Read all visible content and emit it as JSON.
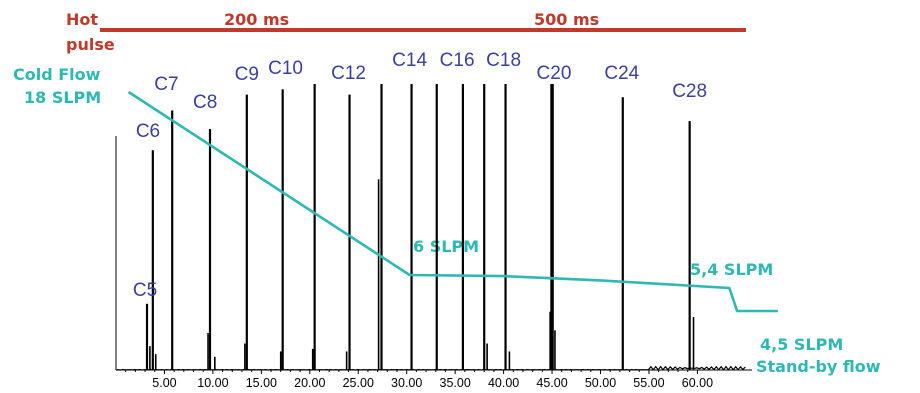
{
  "chart_data": {
    "type": "line",
    "title": "",
    "xlabel": "",
    "ylabel": "",
    "xlim": [
      0,
      64
    ],
    "ylim": [
      0,
      100
    ],
    "x_ticks": [
      "5.00",
      "10.00",
      "15.00",
      "20.00",
      "25.00",
      "30.00",
      "35.00",
      "40.00",
      "45.00",
      "50.00",
      "55.00",
      "60.00"
    ],
    "x_tick_values": [
      5,
      10,
      15,
      20,
      25,
      30,
      35,
      40,
      45,
      50,
      55,
      60
    ],
    "grid": false,
    "chromatogram_peaks": [
      {
        "x": 3.2,
        "h": 25,
        "label": "C5"
      },
      {
        "x": 3.8,
        "h": 83,
        "label": "C6"
      },
      {
        "x": 5.8,
        "h": 98,
        "label": "C7"
      },
      {
        "x": 9.7,
        "h": 91,
        "label": "C8"
      },
      {
        "x": 13.5,
        "h": 104,
        "label": "C9"
      },
      {
        "x": 17.2,
        "h": 106,
        "label": "C10"
      },
      {
        "x": 20.5,
        "h": 108,
        "label": "C12"
      },
      {
        "x": 24.1,
        "h": 104,
        "label": "C12"
      },
      {
        "x": 27.4,
        "h": 108,
        "label": "C14"
      },
      {
        "x": 30.5,
        "h": 108,
        "label": "C14"
      },
      {
        "x": 33.1,
        "h": 108,
        "label": "C16"
      },
      {
        "x": 35.8,
        "h": 108,
        "label": "C16"
      },
      {
        "x": 38.0,
        "h": 108,
        "label": "C18"
      },
      {
        "x": 40.2,
        "h": 108,
        "label": "C18"
      },
      {
        "x": 45.0,
        "h": 108,
        "label": "C20"
      },
      {
        "x": 52.3,
        "h": 103,
        "label": "C24"
      },
      {
        "x": 59.2,
        "h": 94,
        "label": "C28"
      }
    ],
    "minor_peaks": [
      {
        "x": 3.5,
        "h": 9
      },
      {
        "x": 4.1,
        "h": 6
      },
      {
        "x": 9.5,
        "h": 14
      },
      {
        "x": 10.2,
        "h": 5
      },
      {
        "x": 13.3,
        "h": 10
      },
      {
        "x": 17.0,
        "h": 7
      },
      {
        "x": 20.3,
        "h": 8
      },
      {
        "x": 23.8,
        "h": 7
      },
      {
        "x": 27.1,
        "h": 72
      },
      {
        "x": 38.3,
        "h": 10
      },
      {
        "x": 40.6,
        "h": 7
      },
      {
        "x": 44.8,
        "h": 22
      },
      {
        "x": 45.3,
        "h": 15
      },
      {
        "x": 59.6,
        "h": 20
      }
    ],
    "peak_labels": [
      "C5",
      "C6",
      "C7",
      "C8",
      "C9",
      "C10",
      "C12",
      "C14",
      "C16",
      "C18",
      "C20",
      "C24",
      "C28"
    ],
    "flow_program": {
      "series_color": "#2eb8b3",
      "annotations": [
        "Cold  Flow",
        "18 SLPM",
        "6 SLPM",
        "5,4 SLPM",
        "4,5 SLPM",
        "Stand-by flow"
      ],
      "levels_slpm": [
        18,
        6,
        5.4,
        4.5
      ]
    },
    "hot_pulse": {
      "label_line1": "Hot",
      "label_line2": "pulse",
      "color": "#c0392b",
      "segments": [
        "200 ms",
        "500 ms"
      ]
    }
  }
}
